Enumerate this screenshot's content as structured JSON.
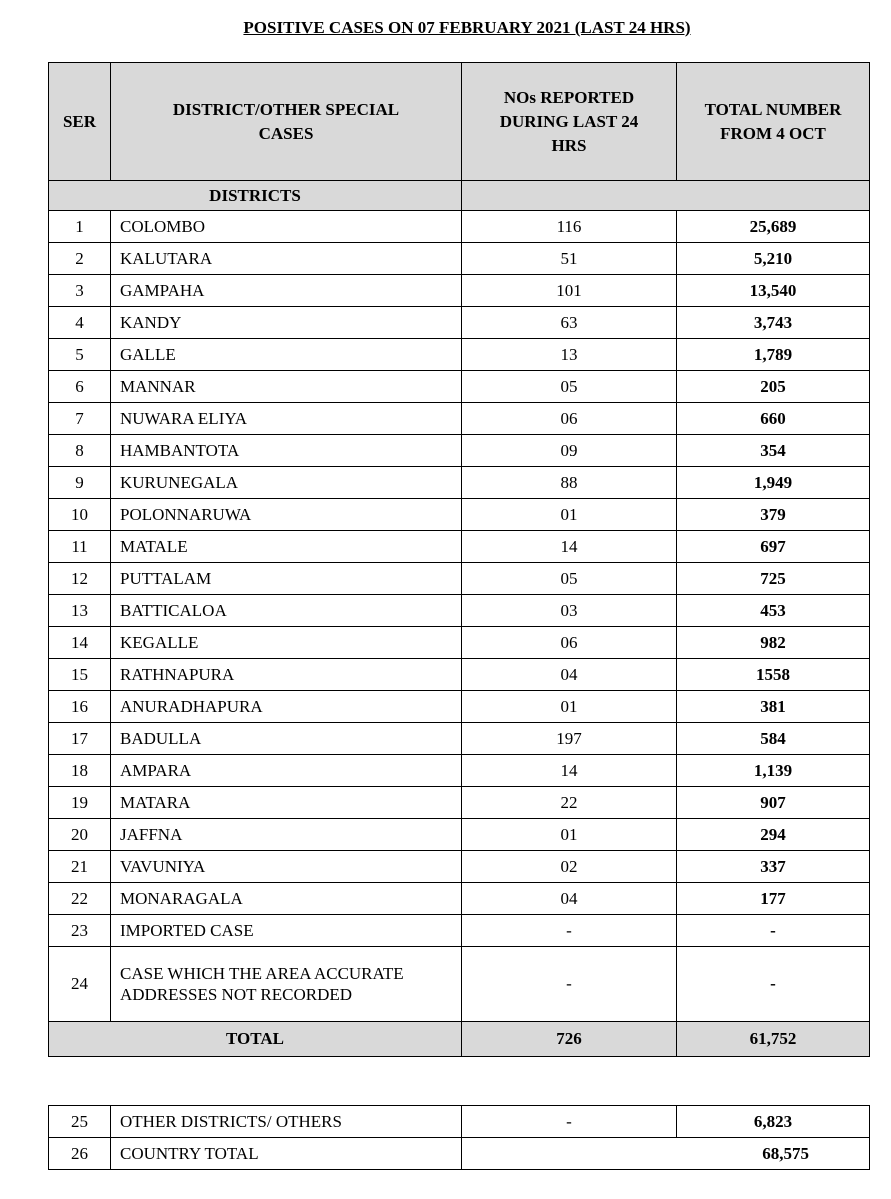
{
  "title": "POSITIVE CASES ON 07 FEBRUARY 2021 (LAST 24 HRS)",
  "table": {
    "header": [
      "SER",
      "DISTRICT/OTHER SPECIAL CASES",
      "NOs REPORTED DURING LAST 24 HRS",
      "TOTAL NUMBER FROM 4 OCT"
    ],
    "section": "DISTRICTS",
    "rows": [
      [
        "1",
        "COLOMBO",
        "116",
        "25,689"
      ],
      [
        "2",
        "KALUTARA",
        "51",
        "5,210"
      ],
      [
        "3",
        "GAMPAHA",
        "101",
        "13,540"
      ],
      [
        "4",
        "KANDY",
        "63",
        "3,743"
      ],
      [
        "5",
        "GALLE",
        "13",
        "1,789"
      ],
      [
        "6",
        "MANNAR",
        "05",
        "205"
      ],
      [
        "7",
        "NUWARA ELIYA",
        "06",
        "660"
      ],
      [
        "8",
        "HAMBANTOTA",
        "09",
        "354"
      ],
      [
        "9",
        "KURUNEGALA",
        "88",
        "1,949"
      ],
      [
        "10",
        "POLONNARUWA",
        "01",
        "379"
      ],
      [
        "11",
        "MATALE",
        "14",
        "697"
      ],
      [
        "12",
        "PUTTALAM",
        "05",
        "725"
      ],
      [
        "13",
        "BATTICALOA",
        "03",
        "453"
      ],
      [
        "14",
        "KEGALLE",
        "06",
        "982"
      ],
      [
        "15",
        "RATHNAPURA",
        "04",
        "1558"
      ],
      [
        "16",
        "ANURADHAPURA",
        "01",
        "381"
      ],
      [
        "17",
        "BADULLA",
        "197",
        "584"
      ],
      [
        "18",
        "AMPARA",
        "14",
        "1,139"
      ],
      [
        "19",
        "MATARA",
        "22",
        "907"
      ],
      [
        "20",
        "JAFFNA",
        "01",
        "294"
      ],
      [
        "21",
        "VAVUNIYA",
        "02",
        "337"
      ],
      [
        "22",
        "MONARAGALA",
        "04",
        "177"
      ],
      [
        "23",
        "IMPORTED CASE",
        "-",
        "-"
      ],
      [
        "24",
        "CASE WHICH THE AREA ACCURATE ADDRESSES NOT RECORDED",
        "-",
        "-"
      ]
    ],
    "total": [
      "TOTAL",
      "726",
      "61,752"
    ]
  },
  "others_table": {
    "rows": [
      [
        "25",
        "OTHER DISTRICTS/ OTHERS",
        "-",
        "6,823"
      ],
      [
        "26",
        "COUNTRY TOTAL",
        "68,575"
      ]
    ]
  }
}
